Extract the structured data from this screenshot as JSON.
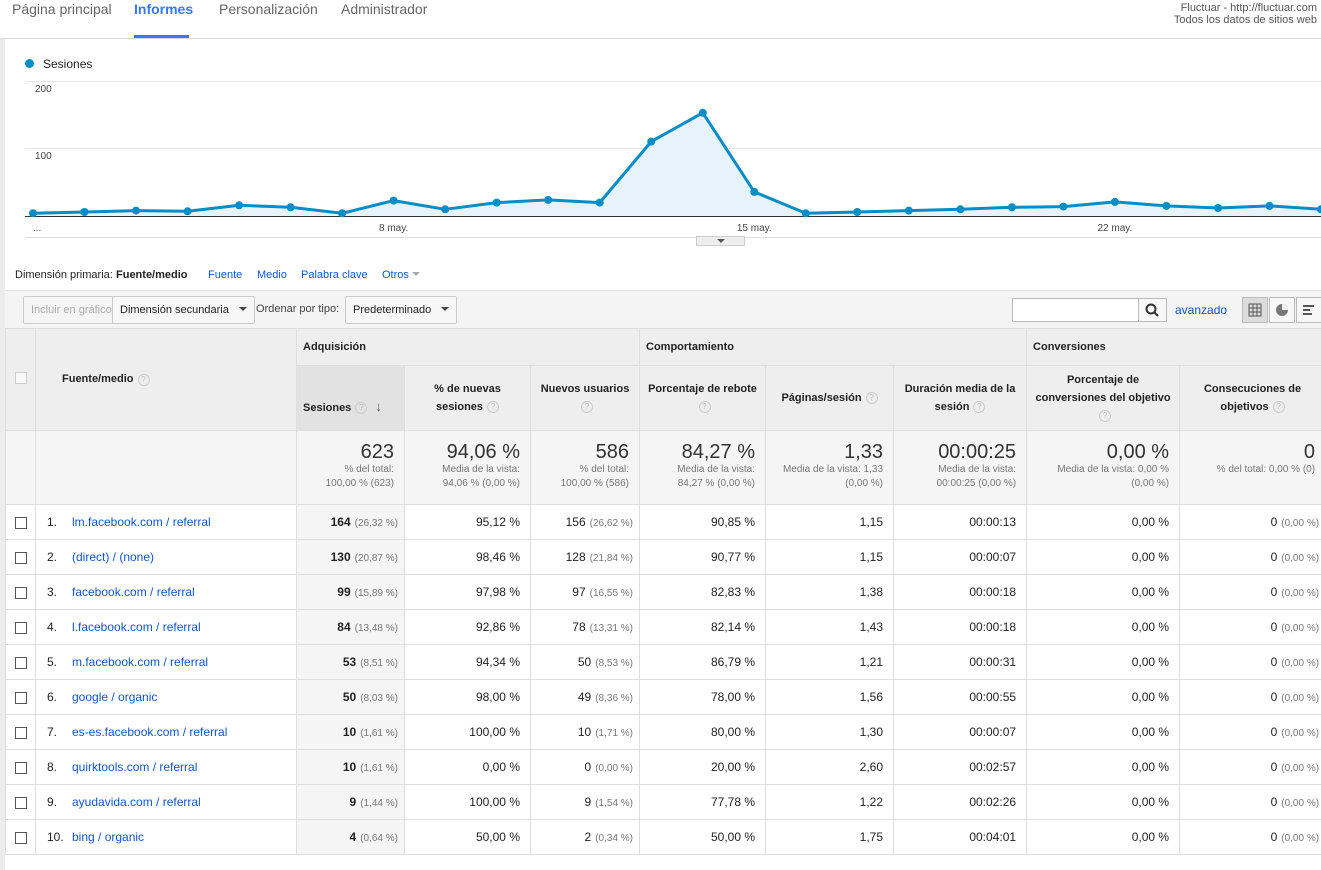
{
  "nav": {
    "tabs": [
      "Página principal",
      "Informes",
      "Personalización",
      "Administrador"
    ],
    "active": "Informes",
    "account_line1": "Fluctuar - http://fluctuar.com",
    "account_line2": "Todos los datos de sitios web"
  },
  "chart_data": {
    "type": "line",
    "title": "",
    "legend": [
      "Sesiones"
    ],
    "ylim": [
      0,
      200
    ],
    "yticks": [
      "200",
      "100"
    ],
    "xticks": [
      {
        "label": "...",
        "index": 0
      },
      {
        "label": "8 may.",
        "index": 7
      },
      {
        "label": "15 may.",
        "index": 14
      },
      {
        "label": "22 may.",
        "index": 21
      }
    ],
    "series": [
      {
        "name": "Sesiones",
        "color": "#058dc7",
        "values": [
          4,
          6,
          8,
          7,
          16,
          13,
          4,
          23,
          10,
          20,
          24,
          20,
          111,
          154,
          36,
          4,
          6,
          8,
          10,
          13,
          14,
          21,
          15,
          12,
          15,
          10
        ]
      }
    ]
  },
  "dimension": {
    "label": "Dimensión primaria:",
    "current": "Fuente/medio",
    "options": [
      "Fuente",
      "Medio",
      "Palabra clave",
      "Otros"
    ]
  },
  "toolbar": {
    "plot_rows": "Incluir en gráfico",
    "secondary": "Dimensión secundaria",
    "sort_label": "Ordenar por tipo:",
    "sort_value": "Predeterminado",
    "search_placeholder": "",
    "advanced": "avanzado"
  },
  "table": {
    "dim_header": "Fuente/medio",
    "groups": [
      "Adquisición",
      "Comportamiento",
      "Conversiones"
    ],
    "columns": [
      "Sesiones",
      "% de nuevas sesiones",
      "Nuevos usuarios",
      "Porcentaje de rebote",
      "Páginas/sesión",
      "Duración media de la sesión",
      "Porcentaje de conversiones del objetivo",
      "Consecuciones de objetivos"
    ],
    "totals": [
      {
        "big": "623",
        "sub1": "% del total:",
        "sub2": "100,00 % (623)"
      },
      {
        "big": "94,06 %",
        "sub1": "Media de la vista:",
        "sub2": "94,06 % (0,00 %)"
      },
      {
        "big": "586",
        "sub1": "% del total:",
        "sub2": "100,00 % (586)"
      },
      {
        "big": "84,27 %",
        "sub1": "Media de la vista:",
        "sub2": "84,27 % (0,00 %)"
      },
      {
        "big": "1,33",
        "sub1": "Media de la vista: 1,33",
        "sub2": "(0,00 %)"
      },
      {
        "big": "00:00:25",
        "sub1": "Media de la vista:",
        "sub2": "00:00:25 (0,00 %)"
      },
      {
        "big": "0,00 %",
        "sub1": "Media de la vista: 0,00 %",
        "sub2": "(0,00 %)"
      },
      {
        "big": "0",
        "sub1": "% del total: 0,00 % (0)",
        "sub2": ""
      }
    ],
    "rows": [
      {
        "idx": "1.",
        "src": "lm.facebook.com / referral",
        "sess": "164",
        "sess_pct": "(26,32 %)",
        "new_pct": "95,12 %",
        "new_users": "156",
        "nu_pct": "(26,62 %)",
        "bounce": "90,85 %",
        "pages": "1,15",
        "dur": "00:00:13",
        "conv": "0,00 %",
        "goals": "0",
        "goals_pct": "(0,00 %)"
      },
      {
        "idx": "2.",
        "src": "(direct) / (none)",
        "sess": "130",
        "sess_pct": "(20,87 %)",
        "new_pct": "98,46 %",
        "new_users": "128",
        "nu_pct": "(21,84 %)",
        "bounce": "90,77 %",
        "pages": "1,15",
        "dur": "00:00:07",
        "conv": "0,00 %",
        "goals": "0",
        "goals_pct": "(0,00 %)"
      },
      {
        "idx": "3.",
        "src": "facebook.com / referral",
        "sess": "99",
        "sess_pct": "(15,89 %)",
        "new_pct": "97,98 %",
        "new_users": "97",
        "nu_pct": "(16,55 %)",
        "bounce": "82,83 %",
        "pages": "1,38",
        "dur": "00:00:18",
        "conv": "0,00 %",
        "goals": "0",
        "goals_pct": "(0,00 %)"
      },
      {
        "idx": "4.",
        "src": "l.facebook.com / referral",
        "sess": "84",
        "sess_pct": "(13,48 %)",
        "new_pct": "92,86 %",
        "new_users": "78",
        "nu_pct": "(13,31 %)",
        "bounce": "82,14 %",
        "pages": "1,43",
        "dur": "00:00:18",
        "conv": "0,00 %",
        "goals": "0",
        "goals_pct": "(0,00 %)"
      },
      {
        "idx": "5.",
        "src": "m.facebook.com / referral",
        "sess": "53",
        "sess_pct": "(8,51 %)",
        "new_pct": "94,34 %",
        "new_users": "50",
        "nu_pct": "(8,53 %)",
        "bounce": "86,79 %",
        "pages": "1,21",
        "dur": "00:00:31",
        "conv": "0,00 %",
        "goals": "0",
        "goals_pct": "(0,00 %)"
      },
      {
        "idx": "6.",
        "src": "google / organic",
        "sess": "50",
        "sess_pct": "(8,03 %)",
        "new_pct": "98,00 %",
        "new_users": "49",
        "nu_pct": "(8,36 %)",
        "bounce": "78,00 %",
        "pages": "1,56",
        "dur": "00:00:55",
        "conv": "0,00 %",
        "goals": "0",
        "goals_pct": "(0,00 %)"
      },
      {
        "idx": "7.",
        "src": "es-es.facebook.com / referral",
        "sess": "10",
        "sess_pct": "(1,61 %)",
        "new_pct": "100,00 %",
        "new_users": "10",
        "nu_pct": "(1,71 %)",
        "bounce": "80,00 %",
        "pages": "1,30",
        "dur": "00:00:07",
        "conv": "0,00 %",
        "goals": "0",
        "goals_pct": "(0,00 %)"
      },
      {
        "idx": "8.",
        "src": "quirktools.com / referral",
        "sess": "10",
        "sess_pct": "(1,61 %)",
        "new_pct": "0,00 %",
        "new_users": "0",
        "nu_pct": "(0,00 %)",
        "bounce": "20,00 %",
        "pages": "2,60",
        "dur": "00:02:57",
        "conv": "0,00 %",
        "goals": "0",
        "goals_pct": "(0,00 %)"
      },
      {
        "idx": "9.",
        "src": "ayudavida.com / referral",
        "sess": "9",
        "sess_pct": "(1,44 %)",
        "new_pct": "100,00 %",
        "new_users": "9",
        "nu_pct": "(1,54 %)",
        "bounce": "77,78 %",
        "pages": "1,22",
        "dur": "00:02:26",
        "conv": "0,00 %",
        "goals": "0",
        "goals_pct": "(0,00 %)"
      },
      {
        "idx": "10.",
        "src": "bing / organic",
        "sess": "4",
        "sess_pct": "(0,64 %)",
        "new_pct": "50,00 %",
        "new_users": "2",
        "nu_pct": "(0,34 %)",
        "bounce": "50,00 %",
        "pages": "1,75",
        "dur": "00:04:01",
        "conv": "0,00 %",
        "goals": "0",
        "goals_pct": "(0,00 %)"
      }
    ]
  }
}
